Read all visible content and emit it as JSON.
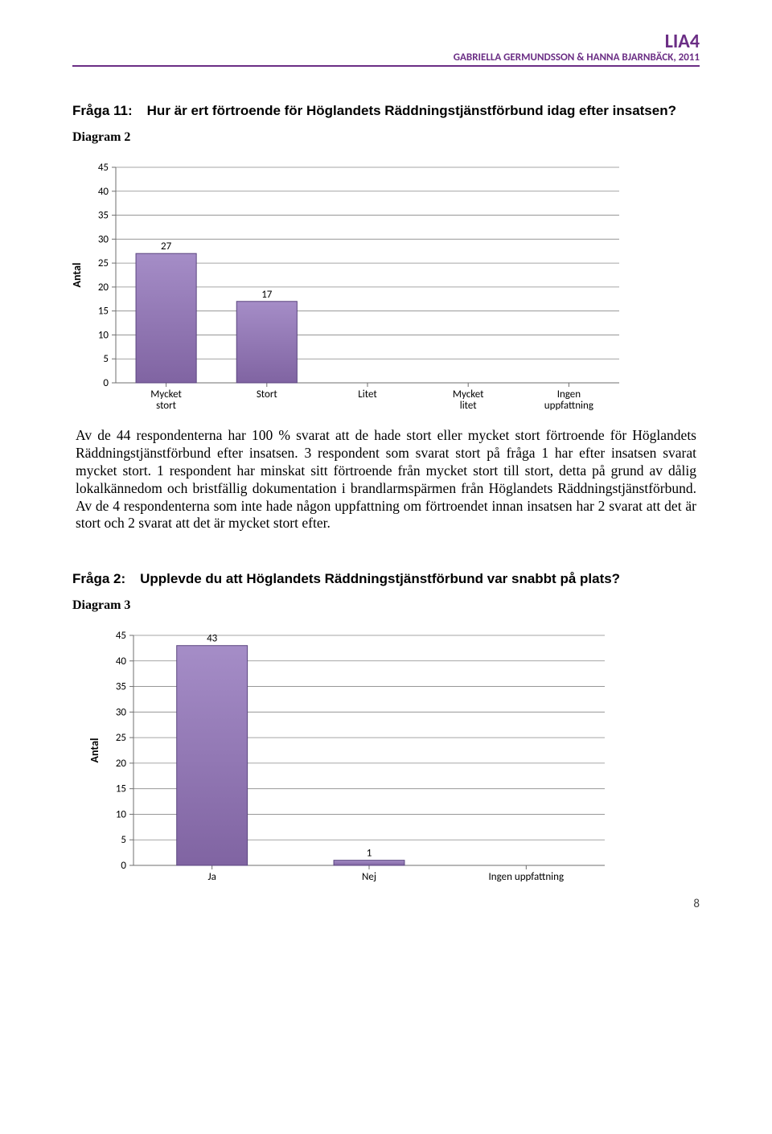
{
  "header": {
    "title": "LIA4",
    "subtitle": "GABRIELLA GERMUNDSSON & HANNA BJARNBÄCK, 2011",
    "accent_color": "#6b2e85"
  },
  "q11": {
    "label": "Fråga 11:",
    "text": "Hur är ert förtroende för Höglandets Räddningstjänstförbund idag efter insatsen?"
  },
  "diagram2": {
    "label": "Diagram 2",
    "type": "bar",
    "y_axis_label": "Antal",
    "ylim": [
      0,
      45
    ],
    "ytick_step": 5,
    "categories": [
      "Mycket stort",
      "Stort",
      "Litet",
      "Mycket litet",
      "Ingen uppfattning"
    ],
    "values": [
      27,
      17,
      0,
      0,
      0
    ],
    "value_labels": [
      "27",
      "17",
      "",
      "",
      ""
    ],
    "bar_fill": "#8064a2",
    "bar_fill_top": "#a58dc7",
    "bar_stroke": "#5b4680",
    "grid_color": "#888888",
    "axis_color": "#6f6f6f",
    "text_color": "#000000",
    "datalabel_fontsize": 13,
    "ticklabel_fontsize": 13,
    "bar_width_ratio": 0.6
  },
  "body11": "Av de 44 respondenterna har 100 % svarat att de hade stort eller mycket stort förtroende för Höglandets Räddningstjänstförbund efter insatsen. 3 respondent som svarat stort på fråga 1 har efter insatsen svarat mycket stort. 1 respondent har minskat sitt förtroende från mycket stort till stort, detta på grund av dålig lokalkännedom och bristfällig dokumentation i brandlarmspärmen från Höglandets Räddningstjänstförbund. Av de 4 respondenterna som inte hade någon uppfattning om förtroendet innan insatsen har 2 svarat att det är stort och 2 svarat att det är mycket stort efter.",
  "q2": {
    "label": "Fråga 2:",
    "text": "Upplevde du att Höglandets Räddningstjänstförbund var snabbt på plats?"
  },
  "diagram3": {
    "label": "Diagram 3",
    "type": "bar",
    "y_axis_label": "Antal",
    "ylim": [
      0,
      45
    ],
    "ytick_step": 5,
    "categories": [
      "Ja",
      "Nej",
      "Ingen uppfattning"
    ],
    "values": [
      43,
      1,
      0
    ],
    "value_labels": [
      "43",
      "1",
      ""
    ],
    "bar_fill": "#8064a2",
    "bar_fill_top": "#a58dc7",
    "bar_stroke": "#5b4680",
    "grid_color": "#888888",
    "axis_color": "#6f6f6f",
    "text_color": "#000000",
    "datalabel_fontsize": 13,
    "ticklabel_fontsize": 13,
    "bar_width_ratio": 0.45
  },
  "page_number": "8"
}
